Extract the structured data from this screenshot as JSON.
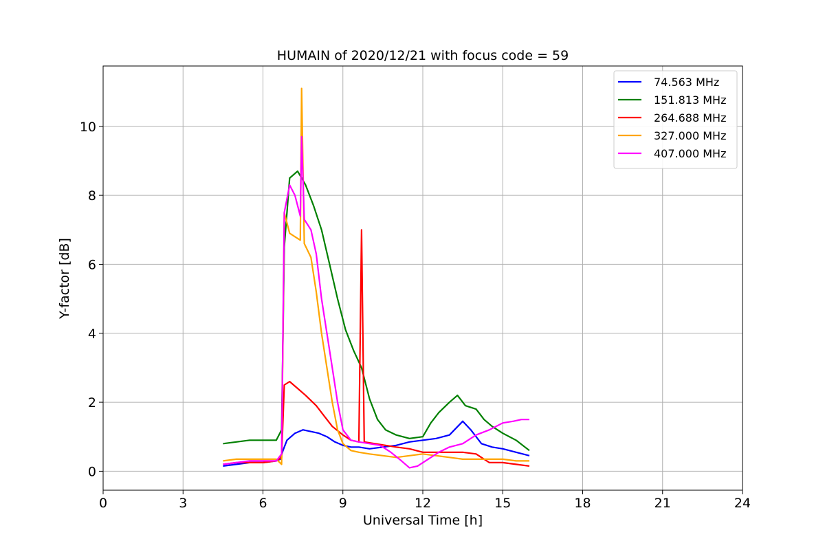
{
  "chart_data": {
    "type": "line",
    "title": "HUMAIN of 2020/12/21 with focus code = 59",
    "xlabel": "Universal Time [h]",
    "ylabel": "Y-factor [dB]",
    "xlim": [
      0,
      24
    ],
    "ylim": [
      -0.55,
      11.75
    ],
    "x_ticks": [
      "0",
      "3",
      "6",
      "9",
      "12",
      "15",
      "18",
      "21",
      "24"
    ],
    "y_ticks": [
      "0",
      "2",
      "4",
      "6",
      "8",
      "10"
    ],
    "grid": true,
    "legend_position": "top-right",
    "series": [
      {
        "name": " 74.563 MHz",
        "color": "#0000ff",
        "points": [
          [
            4.5,
            0.15
          ],
          [
            5.0,
            0.2
          ],
          [
            5.5,
            0.25
          ],
          [
            6.0,
            0.25
          ],
          [
            6.5,
            0.3
          ],
          [
            6.65,
            0.35
          ],
          [
            6.75,
            0.6
          ],
          [
            6.9,
            0.9
          ],
          [
            7.2,
            1.1
          ],
          [
            7.5,
            1.2
          ],
          [
            7.8,
            1.15
          ],
          [
            8.1,
            1.1
          ],
          [
            8.4,
            1.0
          ],
          [
            8.7,
            0.85
          ],
          [
            9.0,
            0.75
          ],
          [
            9.3,
            0.7
          ],
          [
            9.6,
            0.7
          ],
          [
            10.0,
            0.65
          ],
          [
            10.5,
            0.7
          ],
          [
            11.0,
            0.75
          ],
          [
            11.5,
            0.85
          ],
          [
            12.0,
            0.9
          ],
          [
            12.5,
            0.95
          ],
          [
            13.0,
            1.05
          ],
          [
            13.5,
            1.45
          ],
          [
            13.8,
            1.2
          ],
          [
            14.2,
            0.8
          ],
          [
            14.6,
            0.7
          ],
          [
            15.0,
            0.65
          ],
          [
            15.5,
            0.55
          ],
          [
            16.0,
            0.45
          ]
        ]
      },
      {
        "name": "151.813 MHz",
        "color": "#008000",
        "points": [
          [
            4.5,
            0.8
          ],
          [
            5.0,
            0.85
          ],
          [
            5.5,
            0.9
          ],
          [
            6.0,
            0.9
          ],
          [
            6.5,
            0.9
          ],
          [
            6.7,
            1.2
          ],
          [
            6.8,
            6.5
          ],
          [
            7.0,
            8.5
          ],
          [
            7.3,
            8.7
          ],
          [
            7.6,
            8.3
          ],
          [
            7.9,
            7.7
          ],
          [
            8.2,
            7.0
          ],
          [
            8.5,
            6.0
          ],
          [
            8.8,
            5.0
          ],
          [
            9.1,
            4.1
          ],
          [
            9.4,
            3.5
          ],
          [
            9.7,
            3.0
          ],
          [
            10.0,
            2.1
          ],
          [
            10.3,
            1.5
          ],
          [
            10.6,
            1.2
          ],
          [
            11.0,
            1.05
          ],
          [
            11.5,
            0.95
          ],
          [
            12.0,
            1.0
          ],
          [
            12.3,
            1.4
          ],
          [
            12.6,
            1.7
          ],
          [
            13.0,
            2.0
          ],
          [
            13.3,
            2.2
          ],
          [
            13.6,
            1.9
          ],
          [
            14.0,
            1.8
          ],
          [
            14.3,
            1.5
          ],
          [
            14.6,
            1.3
          ],
          [
            15.0,
            1.1
          ],
          [
            15.5,
            0.9
          ],
          [
            16.0,
            0.6
          ]
        ]
      },
      {
        "name": "264.688 MHz",
        "color": "#ff0000",
        "points": [
          [
            4.5,
            0.2
          ],
          [
            5.0,
            0.25
          ],
          [
            5.5,
            0.25
          ],
          [
            6.0,
            0.25
          ],
          [
            6.5,
            0.3
          ],
          [
            6.7,
            0.4
          ],
          [
            6.8,
            2.5
          ],
          [
            7.0,
            2.6
          ],
          [
            7.3,
            2.4
          ],
          [
            7.6,
            2.2
          ],
          [
            8.0,
            1.9
          ],
          [
            8.3,
            1.6
          ],
          [
            8.6,
            1.3
          ],
          [
            9.0,
            1.05
          ],
          [
            9.3,
            0.9
          ],
          [
            9.6,
            0.85
          ],
          [
            9.7,
            7.0
          ],
          [
            9.8,
            0.85
          ],
          [
            10.2,
            0.8
          ],
          [
            10.6,
            0.75
          ],
          [
            11.0,
            0.7
          ],
          [
            11.5,
            0.65
          ],
          [
            12.0,
            0.55
          ],
          [
            12.5,
            0.55
          ],
          [
            13.0,
            0.55
          ],
          [
            13.5,
            0.55
          ],
          [
            14.0,
            0.5
          ],
          [
            14.5,
            0.25
          ],
          [
            15.0,
            0.25
          ],
          [
            15.5,
            0.2
          ],
          [
            16.0,
            0.15
          ]
        ]
      },
      {
        "name": "327.000 MHz",
        "color": "#ffa500",
        "points": [
          [
            4.5,
            0.3
          ],
          [
            5.0,
            0.35
          ],
          [
            5.5,
            0.35
          ],
          [
            6.0,
            0.35
          ],
          [
            6.5,
            0.35
          ],
          [
            6.7,
            0.2
          ],
          [
            6.8,
            7.5
          ],
          [
            7.0,
            6.9
          ],
          [
            7.2,
            6.8
          ],
          [
            7.4,
            6.7
          ],
          [
            7.45,
            11.1
          ],
          [
            7.55,
            6.6
          ],
          [
            7.8,
            6.2
          ],
          [
            8.0,
            5.2
          ],
          [
            8.2,
            4.0
          ],
          [
            8.4,
            3.0
          ],
          [
            8.6,
            2.0
          ],
          [
            8.8,
            1.2
          ],
          [
            9.0,
            0.8
          ],
          [
            9.3,
            0.6
          ],
          [
            9.6,
            0.55
          ],
          [
            10.0,
            0.5
          ],
          [
            10.5,
            0.45
          ],
          [
            11.0,
            0.4
          ],
          [
            11.5,
            0.45
          ],
          [
            12.0,
            0.5
          ],
          [
            12.5,
            0.45
          ],
          [
            13.0,
            0.4
          ],
          [
            13.5,
            0.35
          ],
          [
            14.0,
            0.35
          ],
          [
            14.5,
            0.35
          ],
          [
            15.0,
            0.35
          ],
          [
            15.5,
            0.3
          ],
          [
            16.0,
            0.3
          ]
        ]
      },
      {
        "name": "407.000 MHz",
        "color": "#ff00ff",
        "points": [
          [
            4.5,
            0.2
          ],
          [
            5.0,
            0.25
          ],
          [
            5.5,
            0.3
          ],
          [
            6.0,
            0.3
          ],
          [
            6.5,
            0.3
          ],
          [
            6.7,
            0.5
          ],
          [
            6.8,
            7.5
          ],
          [
            7.0,
            8.3
          ],
          [
            7.2,
            8.0
          ],
          [
            7.4,
            7.4
          ],
          [
            7.45,
            9.7
          ],
          [
            7.55,
            7.3
          ],
          [
            7.8,
            7.0
          ],
          [
            8.0,
            6.3
          ],
          [
            8.2,
            5.0
          ],
          [
            8.4,
            4.0
          ],
          [
            8.6,
            3.0
          ],
          [
            8.8,
            2.0
          ],
          [
            9.0,
            1.2
          ],
          [
            9.3,
            0.9
          ],
          [
            9.6,
            0.85
          ],
          [
            10.0,
            0.8
          ],
          [
            10.4,
            0.75
          ],
          [
            10.8,
            0.55
          ],
          [
            11.2,
            0.3
          ],
          [
            11.5,
            0.1
          ],
          [
            11.8,
            0.15
          ],
          [
            12.2,
            0.35
          ],
          [
            12.6,
            0.55
          ],
          [
            13.0,
            0.7
          ],
          [
            13.5,
            0.8
          ],
          [
            14.0,
            1.05
          ],
          [
            14.5,
            1.2
          ],
          [
            15.0,
            1.4
          ],
          [
            15.4,
            1.45
          ],
          [
            15.7,
            1.5
          ],
          [
            16.0,
            1.5
          ]
        ]
      }
    ]
  }
}
